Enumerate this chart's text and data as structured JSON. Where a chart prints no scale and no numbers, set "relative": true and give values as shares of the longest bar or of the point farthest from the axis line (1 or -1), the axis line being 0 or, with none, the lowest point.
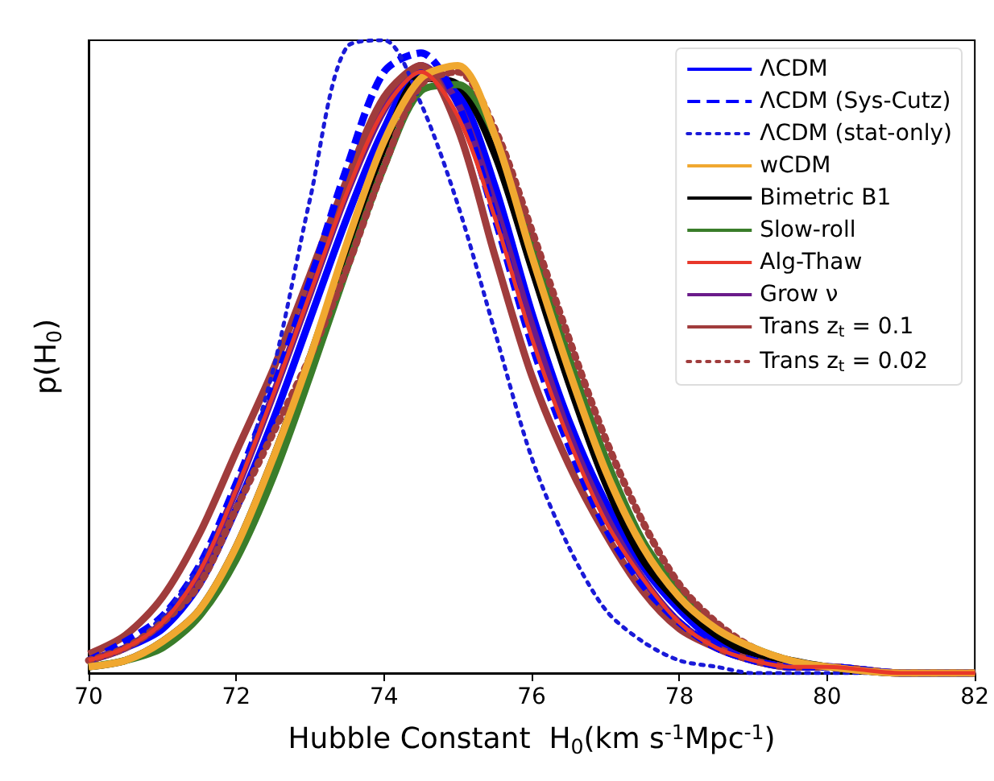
{
  "chart_data": {
    "type": "line",
    "relative": true,
    "xlabel": "Hubble Constant  H$_{0}$(km s$^{-1}$Mpc$^{-1}$)",
    "ylabel": "p(H$_{0}$)",
    "x": [
      70,
      70.5,
      71,
      71.5,
      72,
      72.5,
      73,
      73.5,
      74,
      74.5,
      75,
      75.5,
      76,
      76.5,
      77,
      77.5,
      78,
      78.5,
      79,
      79.5,
      80,
      81,
      82
    ],
    "xlim": [
      70,
      82
    ],
    "xticks": [
      70,
      72,
      74,
      76,
      78,
      80,
      82
    ],
    "grid": false,
    "legend": "top right",
    "marker": "none",
    "series": [
      {
        "name": "ΛCDM",
        "color": "#0000ff",
        "line_style": "solid",
        "values": [
          0.02,
          0.04,
          0.07,
          0.14,
          0.26,
          0.4,
          0.56,
          0.72,
          0.86,
          0.95,
          0.92,
          0.77,
          0.57,
          0.4,
          0.27,
          0.17,
          0.1,
          0.05,
          0.03,
          0.01,
          0.01,
          0,
          0
        ]
      },
      {
        "name": "ΛCDM (Sys-Cutz)",
        "color": "#0000ff",
        "line_style": "dashed",
        "values": [
          0.02,
          0.05,
          0.09,
          0.17,
          0.3,
          0.45,
          0.62,
          0.8,
          0.95,
          0.98,
          0.9,
          0.72,
          0.52,
          0.36,
          0.23,
          0.14,
          0.08,
          0.04,
          0.02,
          0.01,
          0.01,
          0,
          0
        ]
      },
      {
        "name": "ΛCDM (stat-only)",
        "color": "#1a1ad8",
        "line_style": "dotted",
        "values": [
          0.02,
          0.04,
          0.09,
          0.17,
          0.29,
          0.48,
          0.75,
          0.99,
          1.0,
          0.9,
          0.74,
          0.54,
          0.34,
          0.2,
          0.1,
          0.05,
          0.02,
          0.01,
          0,
          0,
          0,
          0,
          0
        ]
      },
      {
        "name": "wCDM",
        "color": "#f0a830",
        "line_style": "solid",
        "values": [
          0.01,
          0.02,
          0.05,
          0.1,
          0.2,
          0.34,
          0.5,
          0.68,
          0.84,
          0.94,
          0.96,
          0.85,
          0.66,
          0.48,
          0.32,
          0.2,
          0.12,
          0.07,
          0.04,
          0.02,
          0.01,
          0,
          0
        ]
      },
      {
        "name": "Bimetric B1",
        "color": "#000000",
        "line_style": "solid",
        "values": [
          0.01,
          0.02,
          0.05,
          0.1,
          0.2,
          0.34,
          0.5,
          0.67,
          0.83,
          0.94,
          0.93,
          0.82,
          0.64,
          0.46,
          0.3,
          0.18,
          0.11,
          0.06,
          0.03,
          0.02,
          0.01,
          0,
          0
        ]
      },
      {
        "name": "Slow-roll",
        "color": "#3a7d2a",
        "line_style": "solid",
        "values": [
          0.01,
          0.02,
          0.04,
          0.09,
          0.18,
          0.31,
          0.47,
          0.64,
          0.8,
          0.92,
          0.93,
          0.85,
          0.68,
          0.5,
          0.34,
          0.21,
          0.13,
          0.07,
          0.04,
          0.02,
          0.01,
          0,
          0
        ]
      },
      {
        "name": "Alg-Thaw",
        "color": "#e8382a",
        "line_style": "solid",
        "values": [
          0.02,
          0.04,
          0.08,
          0.16,
          0.29,
          0.44,
          0.6,
          0.76,
          0.89,
          0.95,
          0.88,
          0.72,
          0.53,
          0.37,
          0.24,
          0.15,
          0.08,
          0.04,
          0.02,
          0.01,
          0.01,
          0,
          0
        ]
      },
      {
        "name": "Grow ν",
        "color": "#6a1b8a",
        "line_style": "solid",
        "values": [
          0.02,
          0.04,
          0.08,
          0.16,
          0.29,
          0.44,
          0.6,
          0.76,
          0.89,
          0.96,
          0.9,
          0.74,
          0.55,
          0.38,
          0.25,
          0.15,
          0.08,
          0.04,
          0.02,
          0.01,
          0.01,
          0,
          0
        ]
      },
      {
        "name": "Trans z$_{t}$ = 0.1",
        "color": "#a03c3c",
        "line_style": "solid",
        "values": [
          0.03,
          0.06,
          0.12,
          0.22,
          0.35,
          0.48,
          0.63,
          0.78,
          0.91,
          0.96,
          0.86,
          0.66,
          0.47,
          0.33,
          0.22,
          0.13,
          0.07,
          0.04,
          0.02,
          0.01,
          0.01,
          0,
          0
        ]
      },
      {
        "name": "Trans z$_{t}$ = 0.02",
        "color": "#a03c3c",
        "line_style": "dotted",
        "values": [
          0.02,
          0.04,
          0.08,
          0.14,
          0.26,
          0.38,
          0.5,
          0.64,
          0.8,
          0.93,
          0.95,
          0.86,
          0.7,
          0.53,
          0.37,
          0.24,
          0.14,
          0.08,
          0.04,
          0.02,
          0.01,
          0,
          0
        ]
      }
    ]
  }
}
